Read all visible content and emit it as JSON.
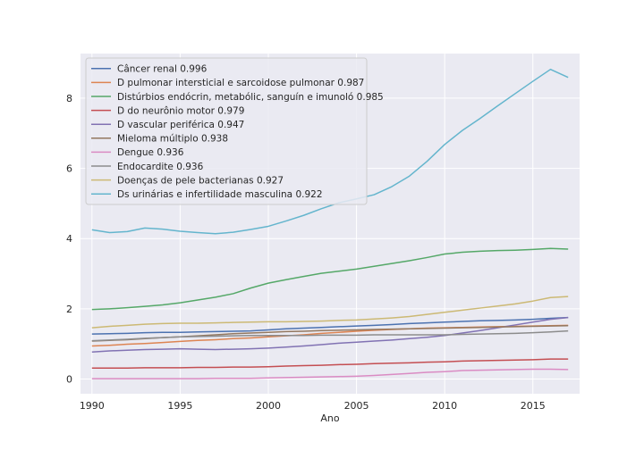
{
  "chart_data": {
    "type": "line",
    "xlabel": "Ano",
    "ylabel": "",
    "xlim": [
      1989.35,
      2017.65
    ],
    "ylim": [
      -0.42,
      9.27
    ],
    "xticks": [
      1990,
      1995,
      2000,
      2005,
      2010,
      2015
    ],
    "yticks": [
      0,
      2,
      4,
      6,
      8
    ],
    "grid": true,
    "legend_position": "top-left",
    "x": [
      1990,
      1991,
      1992,
      1993,
      1994,
      1995,
      1996,
      1997,
      1998,
      1999,
      2000,
      2001,
      2002,
      2003,
      2004,
      2005,
      2006,
      2007,
      2008,
      2009,
      2010,
      2011,
      2012,
      2013,
      2014,
      2015,
      2016,
      2017
    ],
    "series": [
      {
        "name": "Câncer renal 0.996",
        "color": "#4c72b0",
        "values": [
          1.28,
          1.29,
          1.3,
          1.32,
          1.33,
          1.33,
          1.34,
          1.35,
          1.36,
          1.37,
          1.4,
          1.43,
          1.45,
          1.47,
          1.49,
          1.51,
          1.53,
          1.55,
          1.58,
          1.6,
          1.62,
          1.64,
          1.66,
          1.67,
          1.68,
          1.7,
          1.73,
          1.75
        ]
      },
      {
        "name": "D pulmonar intersticial e sarcoidose pulmonar 0.987",
        "color": "#dd8452",
        "values": [
          0.94,
          0.96,
          0.99,
          1.01,
          1.04,
          1.07,
          1.1,
          1.12,
          1.15,
          1.17,
          1.2,
          1.23,
          1.26,
          1.3,
          1.33,
          1.36,
          1.39,
          1.41,
          1.43,
          1.45,
          1.46,
          1.47,
          1.48,
          1.49,
          1.5,
          1.51,
          1.52,
          1.53
        ]
      },
      {
        "name": "Distúrbios endócrin, metabólic, sanguín e imunoló 0.985",
        "color": "#55a868",
        "values": [
          1.98,
          2.0,
          2.03,
          2.07,
          2.11,
          2.17,
          2.25,
          2.33,
          2.43,
          2.59,
          2.73,
          2.83,
          2.92,
          3.01,
          3.07,
          3.13,
          3.21,
          3.29,
          3.37,
          3.46,
          3.56,
          3.61,
          3.64,
          3.66,
          3.67,
          3.69,
          3.72,
          3.7
        ]
      },
      {
        "name": "D do neurônio motor 0.979",
        "color": "#c44e52",
        "values": [
          0.31,
          0.31,
          0.31,
          0.32,
          0.32,
          0.32,
          0.33,
          0.33,
          0.34,
          0.34,
          0.35,
          0.37,
          0.38,
          0.39,
          0.41,
          0.42,
          0.44,
          0.45,
          0.46,
          0.48,
          0.49,
          0.51,
          0.52,
          0.53,
          0.54,
          0.55,
          0.57,
          0.57
        ]
      },
      {
        "name": "D vascular periférica 0.947",
        "color": "#8172b3",
        "values": [
          0.77,
          0.8,
          0.82,
          0.84,
          0.85,
          0.86,
          0.85,
          0.84,
          0.85,
          0.86,
          0.88,
          0.91,
          0.94,
          0.98,
          1.02,
          1.05,
          1.08,
          1.11,
          1.15,
          1.19,
          1.24,
          1.31,
          1.38,
          1.46,
          1.54,
          1.62,
          1.7,
          1.75
        ]
      },
      {
        "name": "Mieloma múltiplo 0.938",
        "color": "#937860",
        "values": [
          1.08,
          1.1,
          1.12,
          1.15,
          1.18,
          1.2,
          1.23,
          1.26,
          1.29,
          1.31,
          1.33,
          1.35,
          1.36,
          1.38,
          1.39,
          1.4,
          1.41,
          1.42,
          1.43,
          1.44,
          1.45,
          1.46,
          1.47,
          1.48,
          1.49,
          1.5,
          1.51,
          1.52
        ]
      },
      {
        "name": "Dengue 0.936",
        "color": "#da8bc3",
        "values": [
          0.01,
          0.01,
          0.01,
          0.01,
          0.01,
          0.01,
          0.01,
          0.02,
          0.02,
          0.02,
          0.03,
          0.04,
          0.05,
          0.06,
          0.07,
          0.08,
          0.1,
          0.13,
          0.16,
          0.19,
          0.21,
          0.24,
          0.25,
          0.26,
          0.27,
          0.28,
          0.28,
          0.27
        ]
      },
      {
        "name": "Endocardite 0.936",
        "color": "#8c8c8c",
        "values": [
          1.09,
          1.11,
          1.13,
          1.16,
          1.18,
          1.2,
          1.21,
          1.22,
          1.23,
          1.24,
          1.24,
          1.24,
          1.24,
          1.25,
          1.25,
          1.25,
          1.26,
          1.26,
          1.26,
          1.26,
          1.26,
          1.27,
          1.28,
          1.29,
          1.3,
          1.32,
          1.34,
          1.37
        ]
      },
      {
        "name": "Doenças de pele bacterianas 0.927",
        "color": "#ccb974",
        "values": [
          1.46,
          1.5,
          1.53,
          1.56,
          1.58,
          1.59,
          1.59,
          1.6,
          1.61,
          1.62,
          1.63,
          1.63,
          1.64,
          1.65,
          1.67,
          1.68,
          1.71,
          1.74,
          1.78,
          1.84,
          1.9,
          1.96,
          2.02,
          2.08,
          2.14,
          2.22,
          2.32,
          2.35
        ]
      },
      {
        "name": "Ds urinárias e infertilidade masculina 0.922",
        "color": "#64b5cd",
        "values": [
          4.25,
          4.17,
          4.2,
          4.3,
          4.27,
          4.21,
          4.17,
          4.14,
          4.18,
          4.26,
          4.35,
          4.5,
          4.66,
          4.85,
          5.02,
          5.13,
          5.25,
          5.48,
          5.78,
          6.2,
          6.68,
          7.08,
          7.42,
          7.78,
          8.13,
          8.48,
          8.82,
          8.59
        ]
      }
    ]
  }
}
